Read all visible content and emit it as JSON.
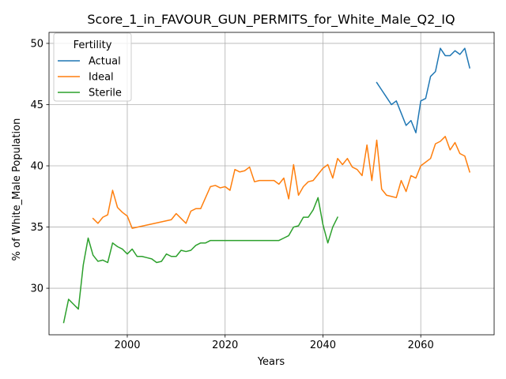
{
  "chart_data": {
    "type": "line",
    "title": "Score_1_in_FAVOUR_GUN_PERMITS_for_White_Male_Q2_IQ",
    "xlabel": "Years",
    "ylabel": "% of White_Male Population",
    "xlim": [
      1984,
      2075
    ],
    "ylim": [
      26.2,
      50.9
    ],
    "xticks": [
      2000,
      2020,
      2040,
      2060
    ],
    "yticks": [
      30,
      35,
      40,
      45,
      50
    ],
    "grid": true,
    "legend": {
      "title": "Fertility",
      "placement": "top-left"
    },
    "colors": {
      "Actual": "#1f77b4",
      "Ideal": "#ff7f0e",
      "Sterile": "#2ca02c"
    },
    "series": [
      {
        "name": "Actual",
        "x": [
          2051,
          2052,
          2053,
          2054,
          2055,
          2056,
          2057,
          2058,
          2059,
          2060,
          2061,
          2062,
          2063,
          2064,
          2065,
          2066,
          2067,
          2068,
          2069,
          2070
        ],
        "y": [
          46.8,
          46.2,
          45.6,
          45.0,
          45.3,
          44.3,
          43.3,
          43.7,
          42.7,
          45.3,
          45.5,
          47.3,
          47.7,
          49.6,
          49.0,
          49.0,
          49.4,
          49.1,
          49.6,
          48.0
        ]
      },
      {
        "name": "Ideal",
        "x": [
          1993,
          1994,
          1995,
          1996,
          1997,
          1998,
          1999,
          2000,
          2001,
          2009,
          2010,
          2011,
          2012,
          2013,
          2014,
          2015,
          2016,
          2017,
          2018,
          2019,
          2020,
          2021,
          2022,
          2023,
          2024,
          2025,
          2026,
          2027,
          2028,
          2029,
          2030,
          2031,
          2032,
          2033,
          2034,
          2035,
          2036,
          2037,
          2038,
          2039,
          2040,
          2041,
          2042,
          2043,
          2044,
          2045,
          2046,
          2047,
          2048,
          2049,
          2050,
          2051,
          2052,
          2053,
          2054,
          2055,
          2056,
          2057,
          2058,
          2059,
          2060,
          2061,
          2062,
          2063,
          2064,
          2065,
          2066,
          2067,
          2068,
          2069,
          2070
        ],
        "y": [
          35.7,
          35.3,
          35.8,
          36.0,
          38.0,
          36.6,
          36.2,
          35.9,
          34.9,
          35.6,
          36.1,
          35.7,
          35.3,
          36.3,
          36.5,
          36.5,
          37.4,
          38.3,
          38.4,
          38.2,
          38.3,
          38.0,
          39.7,
          39.5,
          39.6,
          39.9,
          38.7,
          38.8,
          38.8,
          38.8,
          38.8,
          38.5,
          39.0,
          37.3,
          40.1,
          37.6,
          38.3,
          38.7,
          38.8,
          39.3,
          39.8,
          40.1,
          39.0,
          40.6,
          40.1,
          40.6,
          39.9,
          39.7,
          39.2,
          41.7,
          38.8,
          42.1,
          38.1,
          37.6,
          37.5,
          37.4,
          38.8,
          37.9,
          39.2,
          39.0,
          40.0,
          40.3,
          40.6,
          41.8,
          42.0,
          42.4,
          41.3,
          41.9,
          41.0,
          40.8,
          39.5
        ]
      },
      {
        "name": "Sterile",
        "x": [
          1987,
          1988,
          1989,
          1990,
          1991,
          1992,
          1993,
          1994,
          1995,
          1996,
          1997,
          1998,
          1999,
          2000,
          2001,
          2002,
          2003,
          2004,
          2005,
          2006,
          2007,
          2008,
          2009,
          2010,
          2011,
          2012,
          2013,
          2014,
          2015,
          2016,
          2017,
          2018,
          2019,
          2020,
          2021,
          2022,
          2023,
          2024,
          2025,
          2026,
          2027,
          2028,
          2029,
          2030,
          2031,
          2032,
          2033,
          2034,
          2035,
          2036,
          2037,
          2038,
          2039,
          2040,
          2041,
          2042,
          2043
        ],
        "y": [
          27.2,
          29.1,
          28.7,
          28.3,
          31.9,
          34.1,
          32.7,
          32.2,
          32.3,
          32.1,
          33.7,
          33.4,
          33.2,
          32.8,
          33.2,
          32.6,
          32.6,
          32.5,
          32.4,
          32.1,
          32.2,
          32.8,
          32.6,
          32.6,
          33.1,
          33.0,
          33.1,
          33.5,
          33.7,
          33.7,
          33.9,
          33.9,
          33.9,
          33.9,
          33.9,
          33.9,
          33.9,
          33.9,
          33.9,
          33.9,
          33.9,
          33.9,
          33.9,
          33.9,
          33.9,
          34.1,
          34.3,
          35.0,
          35.1,
          35.8,
          35.8,
          36.4,
          37.4,
          35.2,
          33.7,
          35.0,
          35.8
        ]
      }
    ]
  }
}
